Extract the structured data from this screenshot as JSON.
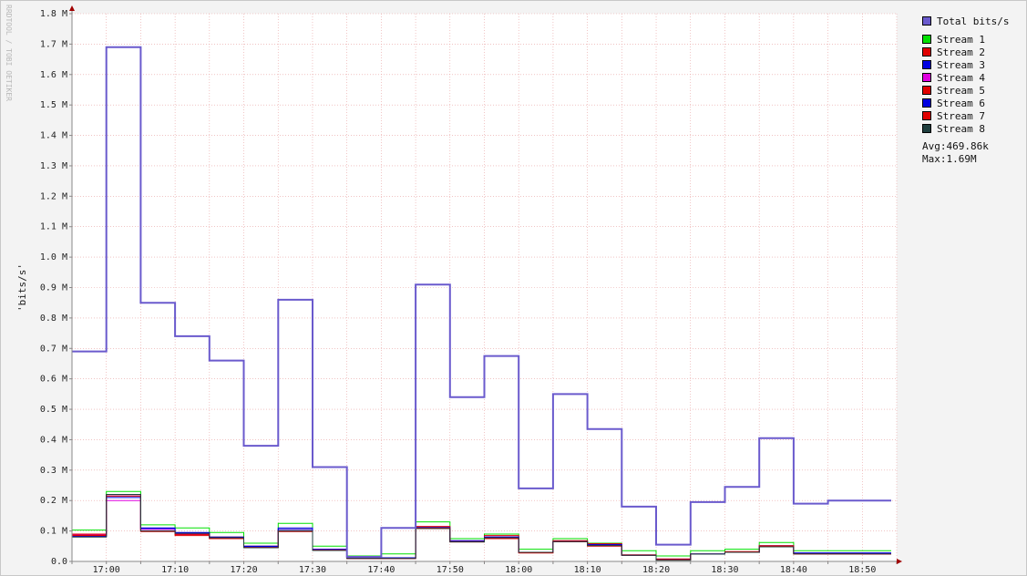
{
  "chart_data": {
    "type": "line",
    "watermark": "RRDTOOL / TOBI OETIKER",
    "ylabel": "'bits/s'",
    "ylim": [
      0,
      1.8
    ],
    "y_ticks": [
      0,
      0.1,
      0.2,
      0.3,
      0.4,
      0.5,
      0.6,
      0.7,
      0.8,
      0.9,
      1.0,
      1.1,
      1.2,
      1.3,
      1.4,
      1.5,
      1.6,
      1.7,
      1.8
    ],
    "y_tick_labels": [
      "0.0",
      "0.1 M",
      "0.2 M",
      "0.3 M",
      "0.4 M",
      "0.5 M",
      "0.6 M",
      "0.7 M",
      "0.8 M",
      "0.9 M",
      "1.0 M",
      "1.1 M",
      "1.2 M",
      "1.3 M",
      "1.4 M",
      "1.5 M",
      "1.6 M",
      "1.7 M",
      "1.8 M"
    ],
    "x_tick_labels": [
      "17:00",
      "17:10",
      "17:20",
      "17:30",
      "17:40",
      "17:50",
      "18:00",
      "18:10",
      "18:20",
      "18:30",
      "18:40",
      "18:50"
    ],
    "x_start": "16:55",
    "x_end": "18:55",
    "step_minutes": 5,
    "grid": true,
    "series": [
      {
        "name": "Total bits/s",
        "color": "#6a5acd",
        "values": [
          0.69,
          1.69,
          0.85,
          0.74,
          0.66,
          0.38,
          0.86,
          0.31,
          0.015,
          0.11,
          0.91,
          0.54,
          0.675,
          0.24,
          0.55,
          0.435,
          0.18,
          0.055,
          0.195,
          0.245,
          0.405,
          0.19,
          0.2,
          0.2
        ]
      },
      {
        "name": "Stream 1",
        "color": "#00e000",
        "values": [
          0.103,
          0.23,
          0.12,
          0.11,
          0.095,
          0.06,
          0.125,
          0.05,
          0.018,
          0.025,
          0.13,
          0.075,
          0.09,
          0.04,
          0.075,
          0.06,
          0.035,
          0.018,
          0.035,
          0.04,
          0.062,
          0.035,
          0.035,
          0.035
        ]
      },
      {
        "name": "Stream 2",
        "color": "#e00000",
        "values": [
          0.09,
          0.22,
          0.1,
          0.09,
          0.08,
          0.05,
          0.105,
          0.04,
          0.012,
          0.012,
          0.115,
          0.065,
          0.085,
          0.03,
          0.068,
          0.058,
          0.022,
          0.008,
          0.025,
          0.032,
          0.052,
          0.025,
          0.025,
          0.025
        ]
      },
      {
        "name": "Stream 3",
        "color": "#0000e0",
        "values": [
          0.083,
          0.21,
          0.11,
          0.095,
          0.08,
          0.05,
          0.11,
          0.04,
          0.012,
          0.012,
          0.11,
          0.068,
          0.08,
          0.03,
          0.065,
          0.055,
          0.02,
          0.006,
          0.025,
          0.03,
          0.05,
          0.028,
          0.028,
          0.028
        ]
      },
      {
        "name": "Stream 4",
        "color": "#e000e0",
        "values": [
          0.088,
          0.2,
          0.105,
          0.09,
          0.078,
          0.048,
          0.1,
          0.038,
          0.01,
          0.01,
          0.11,
          0.066,
          0.08,
          0.03,
          0.066,
          0.055,
          0.02,
          0.006,
          0.024,
          0.03,
          0.05,
          0.026,
          0.026,
          0.026
        ]
      },
      {
        "name": "Stream 5",
        "color": "#e00000",
        "values": [
          0.087,
          0.215,
          0.098,
          0.085,
          0.075,
          0.045,
          0.098,
          0.036,
          0.01,
          0.01,
          0.108,
          0.064,
          0.075,
          0.028,
          0.065,
          0.05,
          0.02,
          0.005,
          0.024,
          0.03,
          0.05,
          0.025,
          0.025,
          0.024
        ]
      },
      {
        "name": "Stream 6",
        "color": "#0000e0",
        "values": [
          0.082,
          0.215,
          0.108,
          0.093,
          0.078,
          0.048,
          0.105,
          0.038,
          0.011,
          0.011,
          0.112,
          0.066,
          0.08,
          0.03,
          0.066,
          0.055,
          0.02,
          0.006,
          0.024,
          0.03,
          0.05,
          0.028,
          0.028,
          0.028
        ]
      },
      {
        "name": "Stream 7",
        "color": "#e00000",
        "values": [
          0.085,
          0.215,
          0.1,
          0.088,
          0.076,
          0.046,
          0.1,
          0.037,
          0.01,
          0.01,
          0.11,
          0.065,
          0.078,
          0.029,
          0.065,
          0.052,
          0.02,
          0.005,
          0.024,
          0.03,
          0.05,
          0.025,
          0.025,
          0.024
        ]
      },
      {
        "name": "Stream 8",
        "color": "#1f3f3f",
        "values": [
          0.08,
          0.22,
          0.1,
          0.092,
          0.078,
          0.045,
          0.1,
          0.036,
          0.01,
          0.01,
          0.108,
          0.064,
          0.078,
          0.03,
          0.065,
          0.052,
          0.02,
          0.004,
          0.024,
          0.03,
          0.048,
          0.025,
          0.025,
          0.025
        ]
      }
    ],
    "legend": {
      "avg": "Avg:469.86k",
      "max": "Max:1.69M"
    }
  }
}
